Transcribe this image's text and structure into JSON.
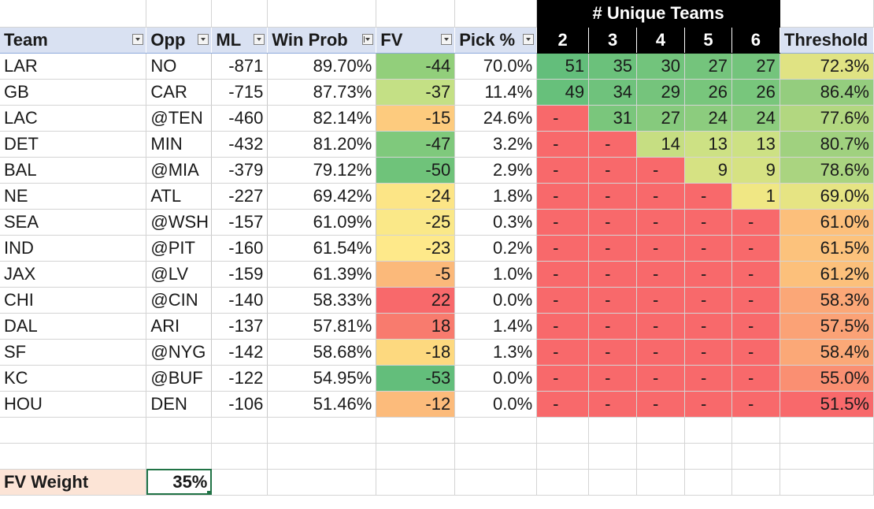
{
  "banner": "# Unique Teams",
  "headers": {
    "team": "Team",
    "opp": "Opp",
    "ml": "ML",
    "win_prob": "Win Prob",
    "fv": "FV",
    "pick": "Pick %",
    "u2": "2",
    "u3": "3",
    "u4": "4",
    "u5": "5",
    "u6": "6",
    "threshold": "Threshold"
  },
  "rows": [
    {
      "team": "LAR",
      "opp": "NO",
      "ml": "-871",
      "wp": "89.70%",
      "fv": "-44",
      "pick": "70.0%",
      "u": [
        "51",
        "35",
        "30",
        "27",
        "27"
      ],
      "thr": "72.3%"
    },
    {
      "team": "GB",
      "opp": "CAR",
      "ml": "-715",
      "wp": "87.73%",
      "fv": "-37",
      "pick": "11.4%",
      "u": [
        "49",
        "34",
        "29",
        "26",
        "26"
      ],
      "thr": "86.4%"
    },
    {
      "team": "LAC",
      "opp": "@TEN",
      "ml": "-460",
      "wp": "82.14%",
      "fv": "-15",
      "pick": "24.6%",
      "u": [
        "-",
        "31",
        "27",
        "24",
        "24"
      ],
      "thr": "77.6%"
    },
    {
      "team": "DET",
      "opp": "MIN",
      "ml": "-432",
      "wp": "81.20%",
      "fv": "-47",
      "pick": "3.2%",
      "u": [
        "-",
        "-",
        "14",
        "13",
        "13"
      ],
      "thr": "80.7%"
    },
    {
      "team": "BAL",
      "opp": "@MIA",
      "ml": "-379",
      "wp": "79.12%",
      "fv": "-50",
      "pick": "2.9%",
      "u": [
        "-",
        "-",
        "-",
        "9",
        "9"
      ],
      "thr": "78.6%"
    },
    {
      "team": "NE",
      "opp": "ATL",
      "ml": "-227",
      "wp": "69.42%",
      "fv": "-24",
      "pick": "1.8%",
      "u": [
        "-",
        "-",
        "-",
        "-",
        "1"
      ],
      "thr": "69.0%"
    },
    {
      "team": "SEA",
      "opp": "@WSH",
      "ml": "-157",
      "wp": "61.09%",
      "fv": "-25",
      "pick": "0.3%",
      "u": [
        "-",
        "-",
        "-",
        "-",
        "-"
      ],
      "thr": "61.0%"
    },
    {
      "team": "IND",
      "opp": "@PIT",
      "ml": "-160",
      "wp": "61.54%",
      "fv": "-23",
      "pick": "0.2%",
      "u": [
        "-",
        "-",
        "-",
        "-",
        "-"
      ],
      "thr": "61.5%"
    },
    {
      "team": "JAX",
      "opp": "@LV",
      "ml": "-159",
      "wp": "61.39%",
      "fv": "-5",
      "pick": "1.0%",
      "u": [
        "-",
        "-",
        "-",
        "-",
        "-"
      ],
      "thr": "61.2%"
    },
    {
      "team": "CHI",
      "opp": "@CIN",
      "ml": "-140",
      "wp": "58.33%",
      "fv": "22",
      "pick": "0.0%",
      "u": [
        "-",
        "-",
        "-",
        "-",
        "-"
      ],
      "thr": "58.3%"
    },
    {
      "team": "DAL",
      "opp": "ARI",
      "ml": "-137",
      "wp": "57.81%",
      "fv": "18",
      "pick": "1.4%",
      "u": [
        "-",
        "-",
        "-",
        "-",
        "-"
      ],
      "thr": "57.5%"
    },
    {
      "team": "SF",
      "opp": "@NYG",
      "ml": "-142",
      "wp": "58.68%",
      "fv": "-18",
      "pick": "1.3%",
      "u": [
        "-",
        "-",
        "-",
        "-",
        "-"
      ],
      "thr": "58.4%"
    },
    {
      "team": "KC",
      "opp": "@BUF",
      "ml": "-122",
      "wp": "54.95%",
      "fv": "-53",
      "pick": "0.0%",
      "u": [
        "-",
        "-",
        "-",
        "-",
        "-"
      ],
      "thr": "55.0%"
    },
    {
      "team": "HOU",
      "opp": "DEN",
      "ml": "-106",
      "wp": "51.46%",
      "fv": "-12",
      "pick": "0.0%",
      "u": [
        "-",
        "-",
        "-",
        "-",
        "-"
      ],
      "thr": "51.5%"
    }
  ],
  "fill_colors": {
    "fv": [
      "#92cf7b",
      "#c4e085",
      "#fdcb7e",
      "#7fc97c",
      "#6fc37a",
      "#fce586",
      "#fae888",
      "#fee98a",
      "#fbb97a",
      "#f8696b",
      "#f87b6e",
      "#fdd97f",
      "#63be7b",
      "#fcbb7b"
    ],
    "unique": [
      [
        "#63be7b",
        "#6bc17b",
        "#72c47c",
        "#74c47c",
        "#74c47c"
      ],
      [
        "#67c07b",
        "#6fc27c",
        "#75c47c",
        "#78c67c",
        "#78c67c"
      ],
      [
        "#f8696b",
        "#7ac67c",
        "#86ca7d",
        "#8ccc7e",
        "#8ccc7e"
      ],
      [
        "#f8696b",
        "#f8696b",
        "#c6de82",
        "#cde184",
        "#cde184"
      ],
      [
        "#f8696b",
        "#f8696b",
        "#f8696b",
        "#d6e283",
        "#d6e283"
      ],
      [
        "#f8696b",
        "#f8696b",
        "#f8696b",
        "#f8696b",
        "#f0e784"
      ]
    ],
    "threshold": [
      "#e0e383",
      "#94cd7e",
      "#b2d780",
      "#a0d17f",
      "#aad480",
      "#e6e483",
      "#fcbf7b",
      "#fcc27c",
      "#fcc07b",
      "#fba777",
      "#fba276",
      "#fba877",
      "#fa8f72",
      "#f8696b"
    ],
    "red": "#f8696b",
    "fv_weight_label_bg": "#fce4d6"
  },
  "fv_weight": {
    "label": "FV Weight",
    "value": "35%"
  }
}
